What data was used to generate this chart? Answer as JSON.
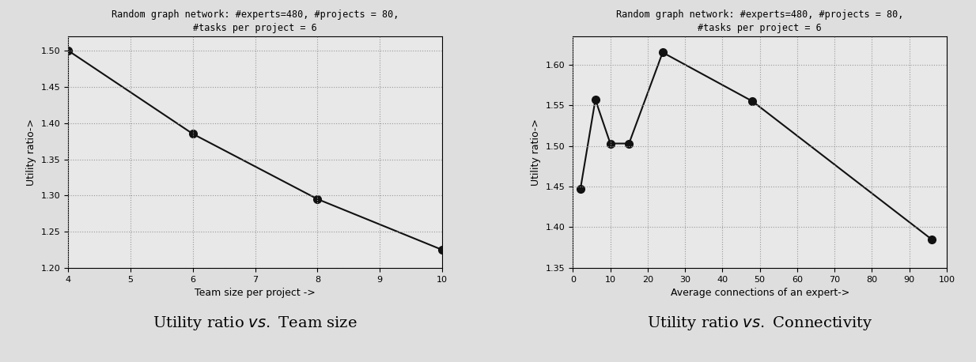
{
  "left": {
    "title": "Random graph network: #experts=480, #projects = 80,\n#tasks per project = 6",
    "xlabel": "Team size per project ->",
    "ylabel": "Utility ratio->",
    "x": [
      4,
      6,
      8,
      10
    ],
    "y": [
      1.5,
      1.385,
      1.295,
      1.225
    ],
    "xlim": [
      4,
      10
    ],
    "ylim": [
      1.2,
      1.52
    ],
    "xticks": [
      4,
      5,
      6,
      7,
      8,
      9,
      10
    ],
    "yticks": [
      1.2,
      1.25,
      1.3,
      1.35,
      1.4,
      1.45,
      1.5
    ],
    "caption_pre": "Utility ratio ",
    "caption_italic": "vs.",
    "caption_post": " Team size"
  },
  "right": {
    "title": "Random graph network: #experts=480, #projects = 80,\n#tasks per project = 6",
    "xlabel": "Average connections of an expert->",
    "ylabel": "Utility ratio->",
    "x": [
      2,
      6,
      10,
      15,
      24,
      48,
      96
    ],
    "y": [
      1.447,
      1.557,
      1.503,
      1.503,
      1.615,
      1.555,
      1.385
    ],
    "xlim": [
      0,
      100
    ],
    "ylim": [
      1.35,
      1.635
    ],
    "xticks": [
      0,
      10,
      20,
      30,
      40,
      50,
      60,
      70,
      80,
      90,
      100
    ],
    "yticks": [
      1.35,
      1.4,
      1.45,
      1.5,
      1.55,
      1.6
    ],
    "caption_pre": "Utility ratio ",
    "caption_italic": "vs.",
    "caption_post": " Connectivity"
  },
  "bg_color": "#e8e8e8",
  "line_color": "#111111",
  "marker": "o",
  "markersize": 7,
  "linewidth": 1.5,
  "grid_color": "#999999",
  "grid_style": ":",
  "title_fontsize": 8.5,
  "label_fontsize": 9,
  "tick_fontsize": 8,
  "caption_fontsize": 14
}
